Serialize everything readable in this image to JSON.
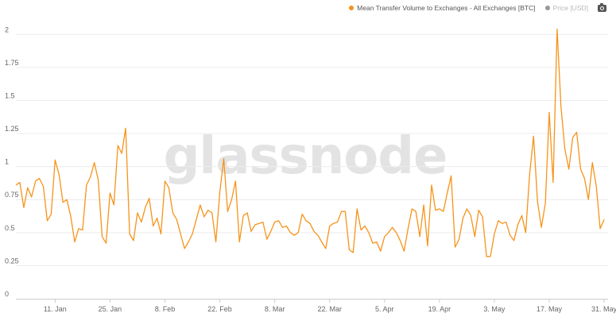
{
  "legend": {
    "series_label": "Mean Transfer Volume to Exchanges - All Exchanges [BTC]",
    "price_label": "Price [USD]",
    "series_color": "#f7931a",
    "price_color": "#999999"
  },
  "toolbar": {
    "screenshot_icon": "camera-icon"
  },
  "watermark": "glassnode",
  "chart_data": {
    "type": "line",
    "title": "",
    "xlabel": "",
    "ylabel": "",
    "ylim": [
      0,
      2.2
    ],
    "yticks": [
      0,
      0.25,
      0.5,
      0.75,
      1,
      1.25,
      1.5,
      1.75,
      2
    ],
    "ytick_labels": [
      "0",
      "0.25",
      "0.5",
      "0.75",
      "1",
      "1.25",
      "1.5",
      "1.75",
      "2"
    ],
    "xlim": [
      "2021-01-01",
      "2021-06-01"
    ],
    "xticks": [
      "2021-01-11",
      "2021-01-25",
      "2021-02-08",
      "2021-02-22",
      "2021-03-08",
      "2021-03-22",
      "2021-04-05",
      "2021-04-19",
      "2021-05-03",
      "2021-05-17",
      "2021-05-31"
    ],
    "xtick_labels": [
      "11. Jan",
      "25. Jan",
      "8. Feb",
      "22. Feb",
      "8. Mar",
      "22. Mar",
      "5. Apr",
      "19. Apr",
      "3. May",
      "17. May",
      "31. May"
    ],
    "grid": {
      "horizontal": true,
      "vertical": false
    },
    "legend_position": "top-right",
    "series": [
      {
        "name": "Mean Transfer Volume to Exchanges - All Exchanges [BTC]",
        "color": "#f7931a",
        "start_date": "2021-01-01",
        "values": [
          0.86,
          0.88,
          0.69,
          0.84,
          0.77,
          0.89,
          0.91,
          0.85,
          0.59,
          0.64,
          1.05,
          0.94,
          0.73,
          0.75,
          0.62,
          0.43,
          0.53,
          0.52,
          0.86,
          0.92,
          1.03,
          0.9,
          0.47,
          0.42,
          0.8,
          0.71,
          1.16,
          1.1,
          1.29,
          0.49,
          0.44,
          0.65,
          0.58,
          0.69,
          0.76,
          0.55,
          0.61,
          0.49,
          0.89,
          0.84,
          0.65,
          0.6,
          0.49,
          0.38,
          0.43,
          0.49,
          0.6,
          0.71,
          0.62,
          0.67,
          0.65,
          0.43,
          0.81,
          1.06,
          0.66,
          0.75,
          0.89,
          0.43,
          0.63,
          0.65,
          0.51,
          0.56,
          0.57,
          0.58,
          0.45,
          0.51,
          0.58,
          0.59,
          0.54,
          0.55,
          0.5,
          0.48,
          0.5,
          0.64,
          0.59,
          0.57,
          0.51,
          0.48,
          0.43,
          0.38,
          0.55,
          0.57,
          0.58,
          0.66,
          0.66,
          0.37,
          0.35,
          0.68,
          0.52,
          0.55,
          0.5,
          0.42,
          0.43,
          0.36,
          0.47,
          0.5,
          0.54,
          0.5,
          0.44,
          0.36,
          0.53,
          0.68,
          0.66,
          0.47,
          0.71,
          0.4,
          0.86,
          0.67,
          0.68,
          0.66,
          0.8,
          0.93,
          0.39,
          0.45,
          0.61,
          0.68,
          0.63,
          0.47,
          0.67,
          0.62,
          0.32,
          0.32,
          0.49,
          0.59,
          0.57,
          0.58,
          0.48,
          0.44,
          0.56,
          0.63,
          0.5,
          0.94,
          1.23,
          0.74,
          0.54,
          0.72,
          1.41,
          0.88,
          2.04,
          1.45,
          1.13,
          0.98,
          1.22,
          1.26,
          0.98,
          0.91,
          0.75,
          1.03,
          0.85,
          0.53,
          0.6
        ]
      }
    ]
  }
}
